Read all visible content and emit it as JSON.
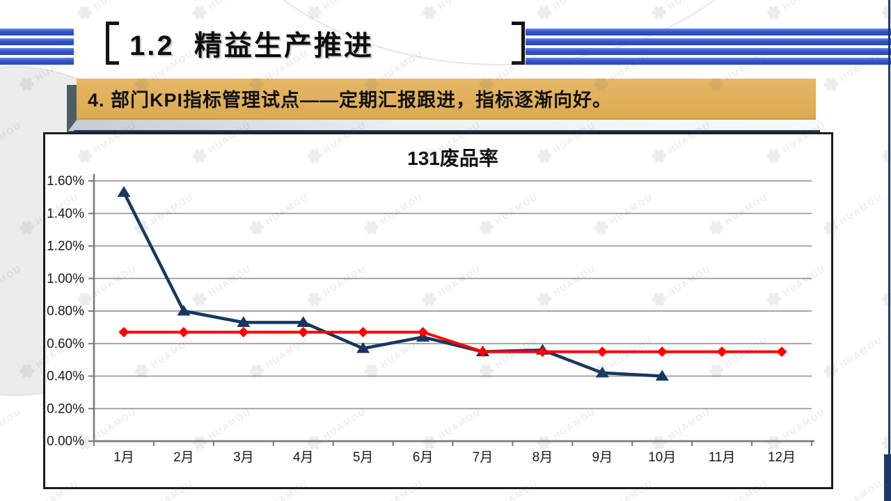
{
  "slide": {
    "title": "1.2  精益生产推进",
    "banner_text": "4. 部门KPI指标管理试点——定期汇报跟进，指标逐渐向好。",
    "watermark_text": "HUAMOU",
    "watermark_logo_icon": "✽",
    "colors": {
      "stripe_blue": "#3254C9",
      "banner_gold": "#DFAD58",
      "navy": "#17375E",
      "series_red": "#FF0000"
    }
  },
  "chart_data": {
    "type": "line",
    "title": "131废品率",
    "categories": [
      "1月",
      "2月",
      "3月",
      "4月",
      "5月",
      "6月",
      "7月",
      "8月",
      "9月",
      "10月",
      "11月",
      "12月"
    ],
    "series": [
      {
        "color": "#17375E",
        "marker": "triangle",
        "values": [
          1.53,
          0.8,
          0.73,
          0.73,
          0.57,
          0.64,
          0.55,
          0.56,
          0.42,
          0.4,
          null,
          null
        ]
      },
      {
        "color": "#FF0000",
        "marker": "diamond",
        "values": [
          0.67,
          0.67,
          0.67,
          0.67,
          0.67,
          0.67,
          0.55,
          0.55,
          0.55,
          0.55,
          0.55,
          0.55
        ]
      }
    ],
    "ylim": [
      0,
      1.6
    ],
    "ytick_step": 0.2,
    "ytick_labels": [
      "0.00%",
      "0.20%",
      "0.40%",
      "0.60%",
      "0.80%",
      "1.00%",
      "1.20%",
      "1.40%",
      "1.60%"
    ],
    "xlabel": "",
    "ylabel": "",
    "value_format": "percent",
    "grid": true,
    "legend_position": "none"
  }
}
